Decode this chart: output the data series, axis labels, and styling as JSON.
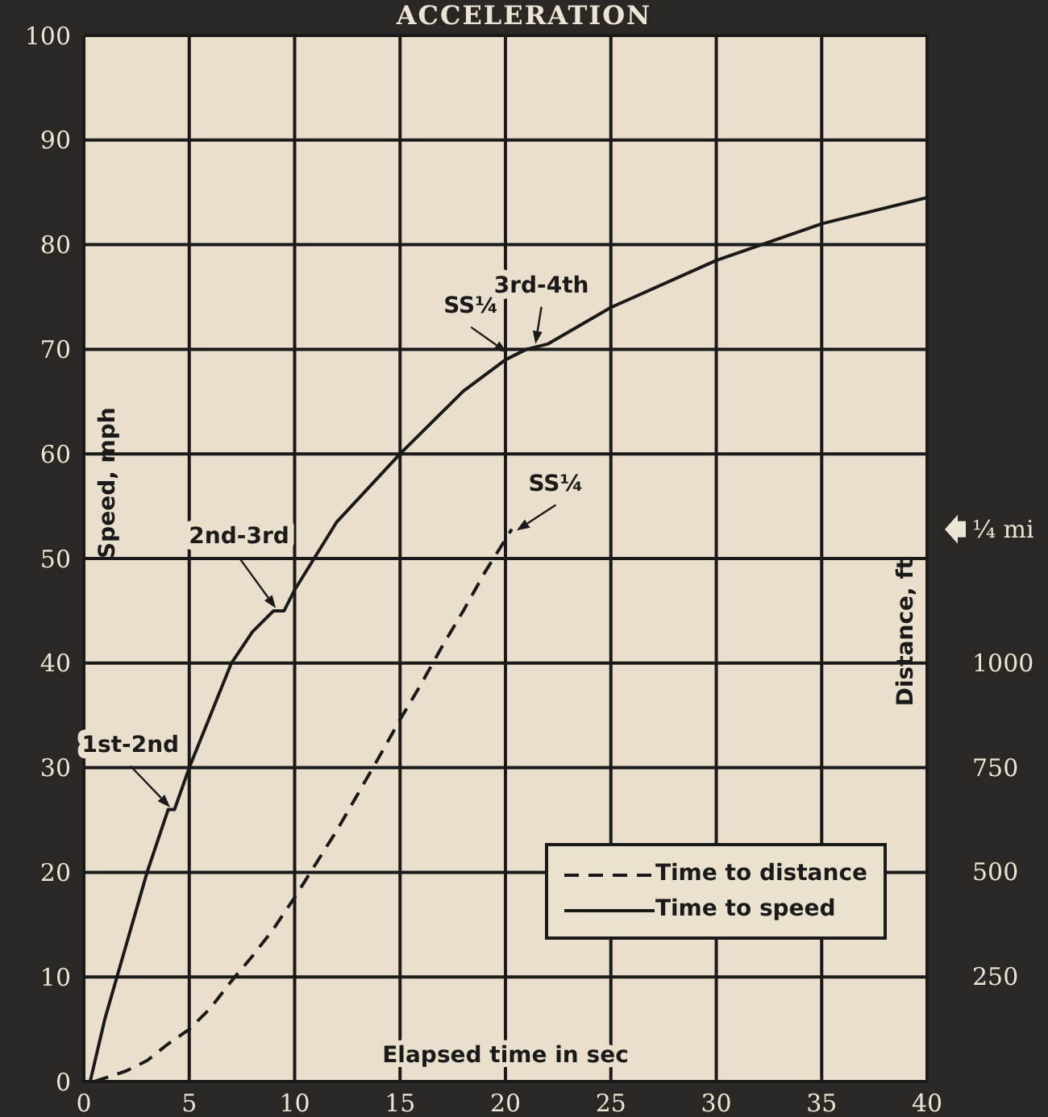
{
  "chart_data": {
    "type": "line",
    "title": "ACCELERATION",
    "xlabel": "Elapsed time in sec",
    "ylabel": "Speed, mph",
    "y2label": "Distance, ft",
    "xlim": [
      0,
      40
    ],
    "xticks": [
      0,
      5,
      10,
      15,
      20,
      25,
      30,
      35,
      40
    ],
    "ylim": [
      0,
      100
    ],
    "yticks": [
      0,
      10,
      20,
      30,
      40,
      50,
      60,
      70,
      80,
      90,
      100
    ],
    "y2lim": [
      0,
      2500
    ],
    "y2ticks": [
      250,
      500,
      750,
      1000,
      {
        "value": 1320,
        "label": "¼ mi"
      }
    ],
    "grid": true,
    "legend": "bottom right",
    "series": [
      {
        "name": "Time to distance",
        "color": "#1a1a1a",
        "line_style": "dashed",
        "axis": "y2",
        "x": [
          0.5,
          2,
          3,
          4,
          5,
          6,
          7,
          8,
          9,
          10,
          12,
          14,
          15,
          16,
          17,
          18,
          19,
          20.3
        ],
        "values": [
          0,
          25,
          50,
          90,
          125,
          175,
          240,
          300,
          365,
          440,
          600,
          775,
          865,
          950,
          1040,
          1125,
          1215,
          1320
        ]
      },
      {
        "name": "Time to speed",
        "color": "#1a1a1a",
        "line_style": "solid",
        "x": [
          0.3,
          1,
          2,
          3,
          4,
          4.3,
          5,
          6,
          7,
          8,
          9,
          9.5,
          10,
          12,
          15,
          18,
          20,
          21,
          22,
          25,
          30,
          35,
          40
        ],
        "values": [
          0,
          6,
          13,
          20,
          26,
          26,
          30,
          35,
          40,
          43,
          45,
          45,
          47,
          53.5,
          60,
          66,
          69,
          70,
          70.5,
          74,
          78.5,
          82,
          84.5
        ]
      }
    ],
    "annotations": [
      {
        "text": "1st-2nd",
        "x": 4.2,
        "y": 26
      },
      {
        "text": "2nd-3rd",
        "x": 9.2,
        "y": 45
      },
      {
        "text": "SS¼",
        "x": 20.2,
        "y": 69.5
      },
      {
        "text": "3rd-4th",
        "x": 21.4,
        "y": 70.2
      },
      {
        "text": "SS¼",
        "x": 20.4,
        "y": 52.5
      }
    ]
  }
}
